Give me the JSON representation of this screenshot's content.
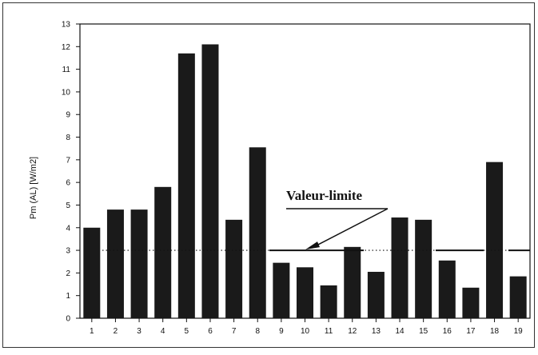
{
  "chart_data": {
    "type": "bar",
    "categories": [
      "1",
      "2",
      "3",
      "4",
      "5",
      "6",
      "7",
      "8",
      "9",
      "10",
      "11",
      "12",
      "13",
      "14",
      "15",
      "16",
      "17",
      "18",
      "19"
    ],
    "values": [
      4.0,
      4.8,
      4.8,
      5.8,
      11.7,
      12.1,
      4.35,
      7.55,
      2.45,
      2.25,
      1.45,
      3.15,
      2.05,
      4.45,
      4.35,
      2.55,
      1.35,
      6.9,
      1.85
    ],
    "ylabel": "Pm (AL)    [W/m2]",
    "xlabel": "",
    "ylim": [
      0,
      13
    ],
    "yticks": [
      "0",
      "1",
      "2",
      "3",
      "4",
      "5",
      "6",
      "7",
      "8",
      "9",
      "10",
      "11",
      "12",
      "13"
    ],
    "grid": false,
    "reference_line": {
      "value": 3,
      "label": "Valeur-limite"
    },
    "colors": {
      "bar": "#1a1a1a",
      "axis": "#111111"
    }
  }
}
